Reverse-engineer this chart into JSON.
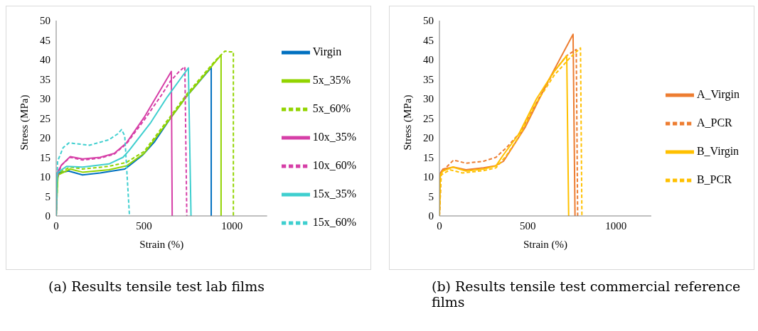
{
  "chart_data": [
    {
      "type": "line",
      "xlabel": "Strain (%)",
      "ylabel": "Stress (MPa)",
      "xlim": [
        0,
        1200
      ],
      "xticks": [
        0,
        500,
        1000
      ],
      "ylim": [
        0,
        50
      ],
      "yticks": [
        0,
        5,
        10,
        15,
        20,
        25,
        30,
        35,
        40,
        45,
        50
      ],
      "grid": false,
      "legend": "right",
      "marker": "none",
      "annotations": [
        "(a) Results tensile test lab films"
      ],
      "series": [
        {
          "name": "Virgin",
          "color": "#0070c0",
          "line_style": "solid",
          "x": [
            0,
            5,
            15,
            70,
            150,
            250,
            390,
            420,
            490,
            560,
            650,
            740,
            882,
            882
          ],
          "values": [
            0,
            9,
            11,
            11.5,
            10.5,
            11,
            12,
            13,
            15.5,
            19,
            25,
            30.5,
            38,
            0
          ]
        },
        {
          "name": "5x_35%",
          "color": "#92d400",
          "line_style": "solid",
          "x": [
            0,
            10,
            80,
            150,
            300,
            400,
            500,
            650,
            740,
            938,
            938
          ],
          "values": [
            0,
            10.5,
            12,
            11.2,
            11.8,
            12.8,
            16,
            25,
            30.5,
            41.2,
            0
          ]
        },
        {
          "name": "5x_60%",
          "color": "#92d400",
          "line_style": "dashed",
          "x": [
            0,
            10,
            80,
            150,
            300,
            400,
            500,
            650,
            740,
            900,
            960,
            990,
            1008,
            1008
          ],
          "values": [
            0,
            11,
            12.5,
            12,
            12.7,
            13.7,
            16.5,
            25.5,
            31,
            39.5,
            42.2,
            42,
            42,
            0
          ]
        },
        {
          "name": "10x_35%",
          "color": "#d63fa7",
          "line_style": "solid",
          "x": [
            0,
            5,
            30,
            80,
            150,
            250,
            330,
            400,
            500,
            655,
            660
          ],
          "values": [
            0,
            11,
            13,
            15.2,
            14.6,
            15,
            16,
            18.7,
            25.2,
            37,
            0
          ]
        },
        {
          "name": "10x_60%",
          "color": "#d63fa7",
          "line_style": "dashed",
          "x": [
            0,
            5,
            30,
            80,
            150,
            250,
            330,
            400,
            500,
            600,
            650,
            700,
            732,
            743
          ],
          "values": [
            0,
            10,
            13,
            15,
            14.3,
            14.8,
            15.8,
            18.5,
            24.5,
            31,
            34.5,
            37,
            38.2,
            0
          ]
        },
        {
          "name": "15x_35%",
          "color": "#3fcfcf",
          "line_style": "solid",
          "x": [
            0,
            5,
            60,
            150,
            300,
            380,
            414,
            538,
            631,
            752,
            767
          ],
          "values": [
            0,
            11,
            12.7,
            12.5,
            13.3,
            15,
            16.7,
            23.9,
            30.4,
            37.9,
            0
          ]
        },
        {
          "name": "15x_60%",
          "color": "#3fcfcf",
          "line_style": "dashed",
          "x": [
            0,
            8,
            40,
            73,
            189,
            300,
            350,
            372,
            390,
            400,
            417
          ],
          "values": [
            0,
            14,
            17.5,
            18.7,
            18.1,
            19.5,
            21,
            22.1,
            20.5,
            13,
            0
          ]
        }
      ]
    },
    {
      "type": "line",
      "xlabel": "Strain (%)",
      "ylabel": "Stress (MPa)",
      "xlim": [
        0,
        1200
      ],
      "xticks": [
        0,
        500,
        1000
      ],
      "ylim": [
        0,
        50
      ],
      "yticks": [
        0,
        5,
        10,
        15,
        20,
        25,
        30,
        35,
        40,
        45,
        50
      ],
      "grid": false,
      "legend": "right",
      "marker": "none",
      "annotations": [
        "(b) Results tensile test commercial reference films"
      ],
      "series": [
        {
          "name": "A_Virgin",
          "color": "#ed7d31",
          "line_style": "solid",
          "x": [
            0,
            5,
            20,
            80,
            150,
            250,
            316,
            363,
            487,
            612,
            757,
            768
          ],
          "values": [
            0,
            11,
            12,
            12.5,
            11.8,
            12.3,
            12.8,
            14,
            22.8,
            34.2,
            46.5,
            0
          ]
        },
        {
          "name": "A_PCR",
          "color": "#ed7d31",
          "line_style": "dashed",
          "x": [
            0,
            10,
            40,
            80,
            150,
            250,
            320,
            380,
            460,
            550,
            650,
            720,
            775,
            783
          ],
          "values": [
            0,
            11,
            12.5,
            14.3,
            13.5,
            14,
            15,
            17.5,
            21.5,
            29,
            37,
            41,
            42.6,
            0
          ]
        },
        {
          "name": "B_Virgin",
          "color": "#ffc000",
          "line_style": "solid",
          "x": [
            0,
            5,
            20,
            75,
            150,
            250,
            320,
            360,
            450,
            550,
            650,
            721,
            732
          ],
          "values": [
            0,
            10.5,
            11.5,
            12.5,
            11.5,
            12,
            12.8,
            15.5,
            21,
            30,
            37,
            41,
            0
          ]
        },
        {
          "name": "B_PCR",
          "color": "#ffc000",
          "line_style": "dashed",
          "x": [
            0,
            10,
            60,
            130,
            250,
            320,
            380,
            460,
            550,
            650,
            740,
            799,
            807
          ],
          "values": [
            0,
            10.5,
            11.8,
            11,
            11.6,
            12.3,
            15.5,
            21,
            29,
            36,
            40.5,
            43,
            0
          ]
        }
      ]
    }
  ]
}
